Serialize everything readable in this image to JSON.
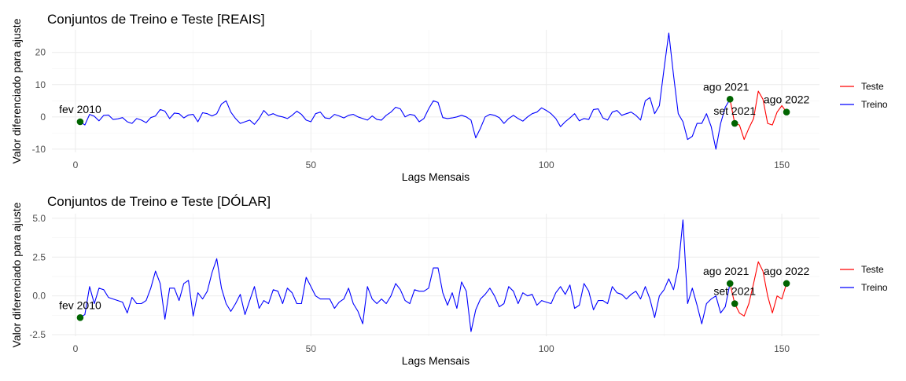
{
  "chart_data": [
    {
      "type": "line",
      "title": "Conjuntos de Treino e Teste [REAIS]",
      "xlabel": "Lags Mensais",
      "ylabel": "Valor diferenciado para ajuste",
      "xlim": [
        -5,
        158
      ],
      "ylim": [
        -11,
        27
      ],
      "xticks": [
        0,
        50,
        100,
        150
      ],
      "yticks": [
        -10,
        0,
        10,
        20
      ],
      "grid": true,
      "legend_position": "right",
      "legend": [
        {
          "label": "Teste",
          "color": "#ff0000"
        },
        {
          "label": "Treino",
          "color": "#0000ff"
        }
      ],
      "series": [
        {
          "name": "Treino",
          "color": "#0000ff",
          "x": [
            1,
            2,
            3,
            4,
            5,
            6,
            7,
            8,
            9,
            10,
            11,
            12,
            13,
            14,
            15,
            16,
            17,
            18,
            19,
            20,
            21,
            22,
            23,
            24,
            25,
            26,
            27,
            28,
            29,
            30,
            31,
            32,
            33,
            34,
            35,
            36,
            37,
            38,
            39,
            40,
            41,
            42,
            43,
            44,
            45,
            46,
            47,
            48,
            49,
            50,
            51,
            52,
            53,
            54,
            55,
            56,
            57,
            58,
            59,
            60,
            61,
            62,
            63,
            64,
            65,
            66,
            67,
            68,
            69,
            70,
            71,
            72,
            73,
            74,
            75,
            76,
            77,
            78,
            79,
            80,
            81,
            82,
            83,
            84,
            85,
            86,
            87,
            88,
            89,
            90,
            91,
            92,
            93,
            94,
            95,
            96,
            97,
            98,
            99,
            100,
            101,
            102,
            103,
            104,
            105,
            106,
            107,
            108,
            109,
            110,
            111,
            112,
            113,
            114,
            115,
            116,
            117,
            118,
            119,
            120,
            121,
            122,
            123,
            124,
            125,
            126,
            127,
            128,
            129,
            130,
            131,
            132,
            133,
            134,
            135,
            136,
            137,
            138,
            139
          ],
          "y": [
            -1.5,
            -2.5,
            0.8,
            0.2,
            -1.2,
            0.5,
            0.6,
            -0.8,
            -0.6,
            -0.2,
            -1.5,
            -2.0,
            -0.5,
            -1.0,
            -1.8,
            -0.2,
            0.3,
            2.3,
            1.8,
            -0.5,
            1.2,
            1.0,
            -0.3,
            0.6,
            0.8,
            -1.5,
            1.3,
            1.0,
            0.3,
            1.0,
            4.0,
            5.0,
            1.5,
            -0.5,
            -2.0,
            -1.5,
            -1.0,
            -2.3,
            -0.5,
            2.0,
            0.5,
            1.0,
            0.3,
            0.0,
            -0.5,
            0.5,
            1.8,
            0.8,
            -1.0,
            -1.5,
            1.0,
            1.5,
            -0.3,
            -0.5,
            0.8,
            0.3,
            -0.3,
            0.5,
            0.8,
            0.0,
            -0.5,
            -1.0,
            0.3,
            -0.8,
            -1.0,
            0.5,
            1.5,
            3.0,
            2.5,
            0.0,
            0.8,
            0.5,
            -1.5,
            -0.5,
            2.5,
            5.0,
            4.5,
            -0.2,
            -0.5,
            -0.3,
            0.0,
            0.5,
            0.0,
            -1.0,
            -6.5,
            -3.5,
            0.0,
            0.8,
            0.5,
            -0.2,
            -2.0,
            -0.5,
            0.5,
            -0.5,
            -1.3,
            0.0,
            1.0,
            1.5,
            2.8,
            2.0,
            1.0,
            -0.5,
            -3.0,
            -1.5,
            -0.3,
            1.0,
            -1.2,
            -0.5,
            -0.8,
            2.3,
            2.5,
            -0.3,
            -1.0,
            1.5,
            2.0,
            0.5,
            1.0,
            1.5,
            0.5,
            -1.0,
            5.0,
            6.0,
            1.0,
            3.5,
            15.0,
            26.0,
            13.0,
            1.0,
            -1.5,
            -7.0,
            -6.0,
            -2.0,
            -2.0,
            1.0,
            -3.0,
            -10.0,
            -2.0,
            3.0,
            5.5
          ]
        },
        {
          "name": "Teste",
          "color": "#ff0000",
          "x": [
            139,
            140,
            141,
            142,
            143,
            144,
            145,
            146,
            147,
            148,
            149,
            150,
            151
          ],
          "y": [
            5.5,
            -2.0,
            -2.5,
            -7.0,
            -3.5,
            -0.5,
            8.0,
            5.5,
            -2.0,
            -2.5,
            1.5,
            3.5,
            1.5
          ]
        }
      ],
      "points": [
        {
          "x": 1,
          "y": -1.5,
          "label": "fev 2010",
          "color": "#006400"
        },
        {
          "x": 139,
          "y": 5.5,
          "label": "ago 2021",
          "color": "#006400"
        },
        {
          "x": 140,
          "y": -2.0,
          "label": "set 2021",
          "color": "#006400"
        },
        {
          "x": 151,
          "y": 1.5,
          "label": "ago 2022",
          "color": "#006400"
        }
      ]
    },
    {
      "type": "line",
      "title": "Conjuntos de Treino e Teste [DÓLAR]",
      "xlabel": "Lags Mensais",
      "ylabel": "Valor diferenciado para ajuste",
      "xlim": [
        -5,
        158
      ],
      "ylim": [
        -2.6,
        5.3
      ],
      "xticks": [
        0,
        50,
        100,
        150
      ],
      "yticks": [
        -2.5,
        0.0,
        2.5,
        5.0
      ],
      "ytick_labels": [
        "-2.5",
        "0.0",
        "2.5",
        "5.0"
      ],
      "grid": true,
      "legend_position": "right",
      "legend": [
        {
          "label": "Teste",
          "color": "#ff0000"
        },
        {
          "label": "Treino",
          "color": "#0000ff"
        }
      ],
      "series": [
        {
          "name": "Treino",
          "color": "#0000ff",
          "x": [
            1,
            2,
            3,
            4,
            5,
            6,
            7,
            8,
            9,
            10,
            11,
            12,
            13,
            14,
            15,
            16,
            17,
            18,
            19,
            20,
            21,
            22,
            23,
            24,
            25,
            26,
            27,
            28,
            29,
            30,
            31,
            32,
            33,
            34,
            35,
            36,
            37,
            38,
            39,
            40,
            41,
            42,
            43,
            44,
            45,
            46,
            47,
            48,
            49,
            50,
            51,
            52,
            53,
            54,
            55,
            56,
            57,
            58,
            59,
            60,
            61,
            62,
            63,
            64,
            65,
            66,
            67,
            68,
            69,
            70,
            71,
            72,
            73,
            74,
            75,
            76,
            77,
            78,
            79,
            80,
            81,
            82,
            83,
            84,
            85,
            86,
            87,
            88,
            89,
            90,
            91,
            92,
            93,
            94,
            95,
            96,
            97,
            98,
            99,
            100,
            101,
            102,
            103,
            104,
            105,
            106,
            107,
            108,
            109,
            110,
            111,
            112,
            113,
            114,
            115,
            116,
            117,
            118,
            119,
            120,
            121,
            122,
            123,
            124,
            125,
            126,
            127,
            128,
            129,
            130,
            131,
            132,
            133,
            134,
            135,
            136,
            137,
            138,
            139
          ],
          "y": [
            -1.4,
            -1.2,
            0.6,
            -0.5,
            0.5,
            0.4,
            -0.1,
            -0.2,
            -0.3,
            -0.4,
            -1.1,
            -0.1,
            -0.5,
            -0.5,
            -0.3,
            0.5,
            1.6,
            0.8,
            -1.5,
            0.5,
            0.5,
            -0.3,
            0.8,
            1.0,
            -1.3,
            0.2,
            -0.2,
            0.3,
            1.5,
            2.4,
            0.5,
            -0.5,
            -1.0,
            -0.5,
            0.1,
            -1.2,
            -0.3,
            0.6,
            -0.8,
            -0.3,
            -0.5,
            0.4,
            0.3,
            -0.5,
            0.5,
            0.2,
            -0.5,
            -0.5,
            1.2,
            0.6,
            0.0,
            -0.2,
            -0.2,
            -0.2,
            -0.8,
            -0.4,
            -0.2,
            0.5,
            -0.5,
            -1.0,
            -1.8,
            0.6,
            -0.2,
            -0.5,
            -0.2,
            -0.5,
            0.0,
            0.8,
            0.4,
            -0.3,
            -0.5,
            0.4,
            0.3,
            0.3,
            0.5,
            1.8,
            1.8,
            0.2,
            -0.6,
            0.2,
            -0.8,
            0.9,
            0.3,
            -2.3,
            -0.9,
            -0.2,
            0.1,
            0.5,
            0.0,
            -0.7,
            -0.5,
            0.6,
            0.3,
            -0.5,
            0.2,
            0.0,
            0.1,
            -0.6,
            -0.3,
            -0.4,
            -0.5,
            0.2,
            0.6,
            0.1,
            0.7,
            -0.8,
            -0.6,
            0.8,
            0.3,
            -0.9,
            -0.3,
            -0.3,
            -0.5,
            0.6,
            0.2,
            0.1,
            -0.2,
            0.1,
            0.3,
            -0.2,
            0.6,
            -0.2,
            -1.4,
            0.0,
            0.4,
            1.1,
            0.4,
            1.8,
            4.9,
            -0.5,
            0.5,
            -0.6,
            -1.8,
            -0.5,
            -0.2,
            0.0,
            -1.1,
            -0.7,
            0.8
          ]
        },
        {
          "name": "Teste",
          "color": "#ff0000",
          "x": [
            139,
            140,
            141,
            142,
            143,
            144,
            145,
            146,
            147,
            148,
            149,
            150,
            151
          ],
          "y": [
            0.8,
            -0.5,
            -1.1,
            -1.3,
            -0.5,
            0.8,
            2.2,
            1.6,
            0.0,
            -1.1,
            0.0,
            -0.2,
            0.8
          ]
        }
      ],
      "points": [
        {
          "x": 1,
          "y": -1.4,
          "label": "fev 2010",
          "color": "#006400"
        },
        {
          "x": 139,
          "y": 0.8,
          "label": "ago 2021",
          "color": "#006400"
        },
        {
          "x": 140,
          "y": -0.5,
          "label": "set 2021",
          "color": "#006400"
        },
        {
          "x": 151,
          "y": 0.8,
          "label": "ago 2022",
          "color": "#006400"
        }
      ]
    }
  ]
}
